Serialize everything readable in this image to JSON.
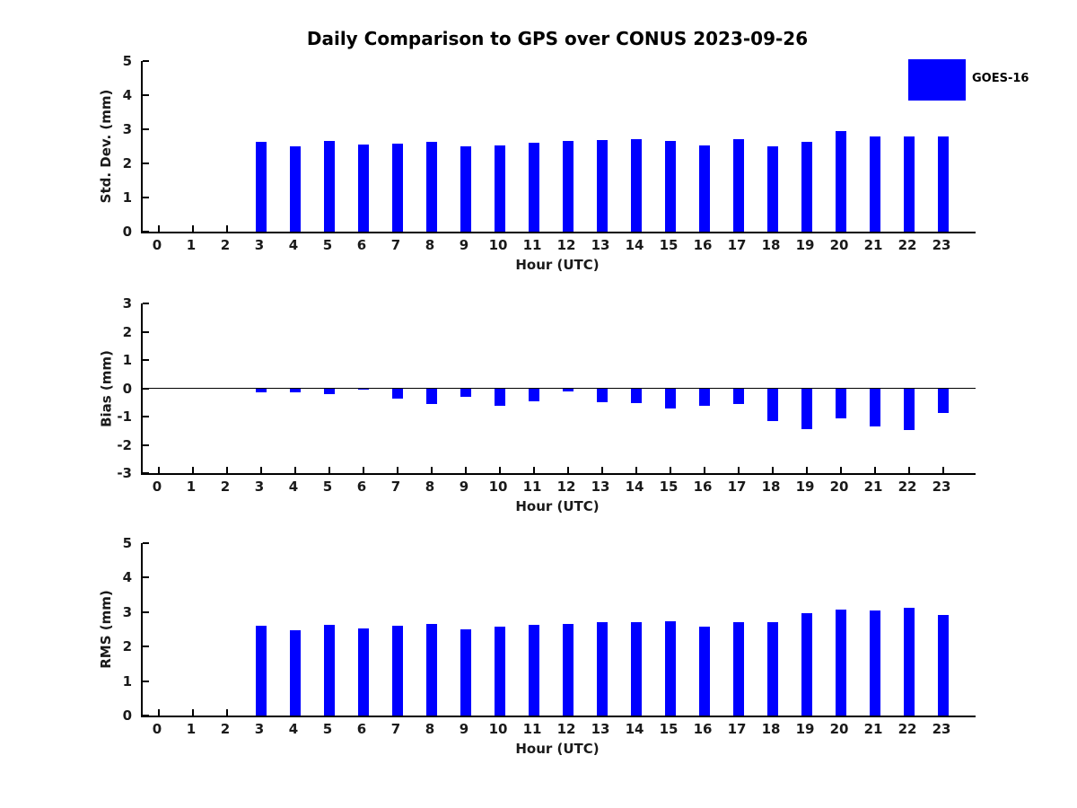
{
  "title": "Daily Comparison to GPS over CONUS 2023-09-26",
  "legend": {
    "label": "GOES-16",
    "color": "#0000ff"
  },
  "chart_data": [
    {
      "type": "bar",
      "name": "std-dev",
      "ylabel": "Std. Dev. (mm)",
      "xlabel": "Hour (UTC)",
      "ylim": [
        0,
        5
      ],
      "yticks": [
        5,
        4,
        3,
        2,
        1,
        0
      ],
      "zero_line": false,
      "categories": [
        "0",
        "1",
        "2",
        "3",
        "4",
        "5",
        "6",
        "7",
        "8",
        "9",
        "10",
        "11",
        "12",
        "13",
        "14",
        "15",
        "16",
        "17",
        "18",
        "19",
        "20",
        "21",
        "22",
        "23"
      ],
      "series": [
        {
          "name": "GOES-16",
          "color": "#0000ff",
          "values": [
            null,
            null,
            null,
            2.63,
            2.5,
            2.67,
            2.56,
            2.58,
            2.62,
            2.51,
            2.52,
            2.61,
            2.66,
            2.69,
            2.7,
            2.67,
            2.53,
            2.7,
            2.5,
            2.64,
            2.94,
            2.78,
            2.8,
            2.8
          ]
        }
      ]
    },
    {
      "type": "bar",
      "name": "bias",
      "ylabel": "Bias (mm)",
      "xlabel": "Hour (UTC)",
      "ylim": [
        -3,
        3
      ],
      "yticks": [
        3,
        2,
        1,
        0,
        -1,
        -2,
        -3
      ],
      "zero_line": true,
      "categories": [
        "0",
        "1",
        "2",
        "3",
        "4",
        "5",
        "6",
        "7",
        "8",
        "9",
        "10",
        "11",
        "12",
        "13",
        "14",
        "15",
        "16",
        "17",
        "18",
        "19",
        "20",
        "21",
        "22",
        "23"
      ],
      "series": [
        {
          "name": "GOES-16",
          "color": "#0000ff",
          "values": [
            null,
            null,
            null,
            -0.15,
            -0.13,
            -0.22,
            -0.06,
            -0.35,
            -0.57,
            -0.3,
            -0.63,
            -0.45,
            -0.1,
            -0.5,
            -0.53,
            -0.71,
            -0.61,
            -0.54,
            -1.16,
            -1.45,
            -1.05,
            -1.35,
            -1.47,
            -0.88
          ]
        }
      ]
    },
    {
      "type": "bar",
      "name": "rms",
      "ylabel": "RMS (mm)",
      "xlabel": "Hour (UTC)",
      "ylim": [
        0,
        5
      ],
      "yticks": [
        5,
        4,
        3,
        2,
        1,
        0
      ],
      "zero_line": false,
      "categories": [
        "0",
        "1",
        "2",
        "3",
        "4",
        "5",
        "6",
        "7",
        "8",
        "9",
        "10",
        "11",
        "12",
        "13",
        "14",
        "15",
        "16",
        "17",
        "18",
        "19",
        "20",
        "21",
        "22",
        "23"
      ],
      "series": [
        {
          "name": "GOES-16",
          "color": "#0000ff",
          "values": [
            null,
            null,
            null,
            2.61,
            2.47,
            2.64,
            2.53,
            2.6,
            2.65,
            2.5,
            2.59,
            2.63,
            2.65,
            2.7,
            2.71,
            2.73,
            2.58,
            2.71,
            2.7,
            2.96,
            3.08,
            3.05,
            3.12,
            2.91
          ]
        }
      ]
    }
  ]
}
